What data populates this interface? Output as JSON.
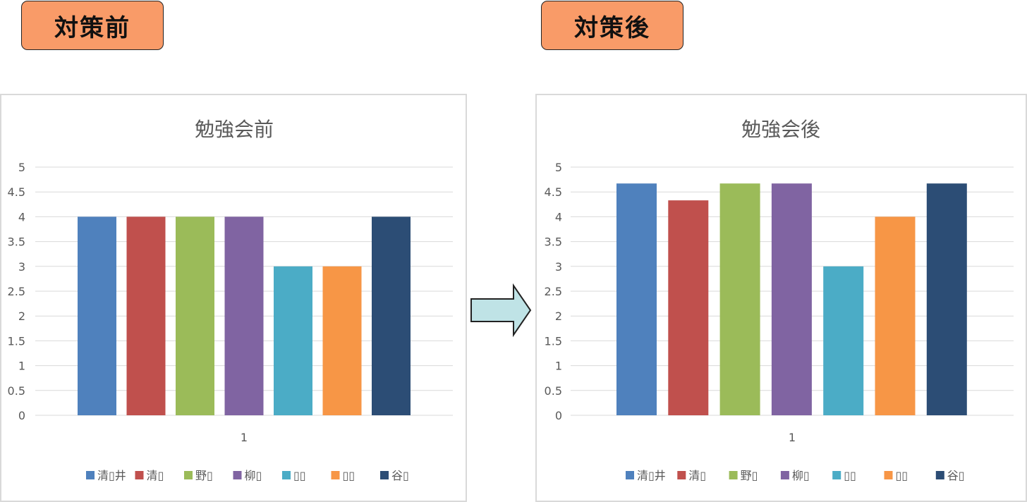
{
  "headers": {
    "before": "対策前",
    "after": "対策後"
  },
  "colors": {
    "header_bg": "#f99b68",
    "arrow_fill": "#bfe3e6",
    "series": [
      "#4f81bd",
      "#c0504d",
      "#9bbb59",
      "#8064a2",
      "#4bacc6",
      "#f79646",
      "#2c4d75"
    ]
  },
  "chart_data": [
    {
      "type": "bar",
      "title": "勉強会前",
      "categories": [
        "1"
      ],
      "series": [
        {
          "name": "清▯井",
          "values": [
            4
          ]
        },
        {
          "name": "清▯",
          "values": [
            4
          ]
        },
        {
          "name": "野▯",
          "values": [
            4
          ]
        },
        {
          "name": "柳▯",
          "values": [
            4
          ]
        },
        {
          "name": "▯▯",
          "values": [
            3
          ]
        },
        {
          "name": "▯▯",
          "values": [
            3
          ]
        },
        {
          "name": "谷▯",
          "values": [
            4
          ]
        }
      ],
      "ylim": [
        0,
        5
      ],
      "yticks": [
        "0",
        "0.5",
        "1",
        "1.5",
        "2",
        "2.5",
        "3",
        "3.5",
        "4",
        "4.5",
        "5"
      ],
      "grid": true,
      "legend": "bottom"
    },
    {
      "type": "bar",
      "title": "勉強会後",
      "categories": [
        "1"
      ],
      "series": [
        {
          "name": "清▯井",
          "values": [
            4.67
          ]
        },
        {
          "name": "清▯",
          "values": [
            4.33
          ]
        },
        {
          "name": "野▯",
          "values": [
            4.67
          ]
        },
        {
          "name": "柳▯",
          "values": [
            4.67
          ]
        },
        {
          "name": "▯▯",
          "values": [
            3
          ]
        },
        {
          "name": "▯▯",
          "values": [
            4
          ]
        },
        {
          "name": "谷▯",
          "values": [
            4.67
          ]
        }
      ],
      "ylim": [
        0,
        5
      ],
      "yticks": [
        "0",
        "0.5",
        "1",
        "1.5",
        "2",
        "2.5",
        "3",
        "3.5",
        "4",
        "4.5",
        "5"
      ],
      "grid": true,
      "legend": "bottom"
    }
  ]
}
